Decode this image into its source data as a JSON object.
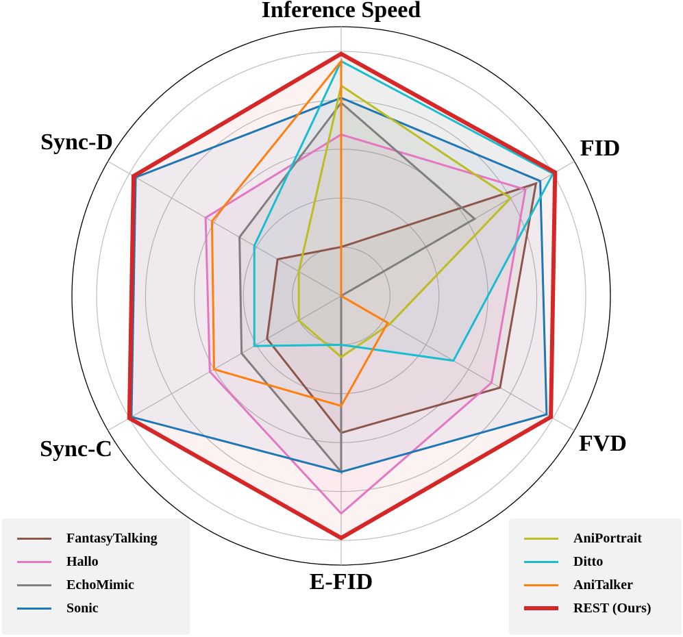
{
  "chart_data": {
    "type": "radar",
    "axes": [
      "Inference Speed",
      "FID",
      "FVD",
      "E-FID",
      "Sync-C",
      "Sync-D"
    ],
    "rlim": [
      0,
      1
    ],
    "grid": true,
    "series": [
      {
        "name": "FantasyTalking",
        "color": "#8c564b",
        "width": 3,
        "fill": true,
        "values": [
          0.2,
          0.92,
          0.75,
          0.56,
          0.35,
          0.3
        ]
      },
      {
        "name": "Hallo",
        "color": "#e377c2",
        "width": 3,
        "fill": true,
        "values": [
          0.66,
          0.87,
          0.71,
          0.89,
          0.62,
          0.64
        ]
      },
      {
        "name": "EchoMimic",
        "color": "#7f7f7f",
        "width": 3,
        "fill": true,
        "values": [
          0.79,
          0.63,
          0.0,
          0.72,
          0.47,
          0.48
        ]
      },
      {
        "name": "Sonic",
        "color": "#1f77b4",
        "width": 3,
        "fill": true,
        "values": [
          0.81,
          0.94,
          0.97,
          0.72,
          0.99,
          0.97
        ]
      },
      {
        "name": "AniPortrait",
        "color": "#bcbd22",
        "width": 3,
        "fill": true,
        "values": [
          0.86,
          0.8,
          0.23,
          0.25,
          0.2,
          0.2
        ]
      },
      {
        "name": "Ditto",
        "color": "#17becf",
        "width": 3,
        "fill": true,
        "values": [
          0.96,
          1.0,
          0.53,
          0.2,
          0.41,
          0.41
        ]
      },
      {
        "name": "AniTalker",
        "color": "#ff7f0e",
        "width": 3,
        "fill": false,
        "values": [
          0.96,
          0.0,
          0.22,
          0.45,
          0.6,
          0.61
        ]
      },
      {
        "name": "REST (Ours)",
        "color": "#d62728",
        "width": 6,
        "fill": true,
        "values": [
          0.99,
          1.01,
          0.99,
          0.99,
          1.0,
          0.98
        ]
      }
    ],
    "legend": [
      {
        "position": "bottom-left",
        "entries": [
          "FantasyTalking",
          "Hallo",
          "EchoMimic",
          "Sonic"
        ]
      },
      {
        "position": "bottom-right",
        "entries": [
          "AniPortrait",
          "Ditto",
          "AniTalker",
          "REST (Ours)"
        ]
      }
    ]
  }
}
